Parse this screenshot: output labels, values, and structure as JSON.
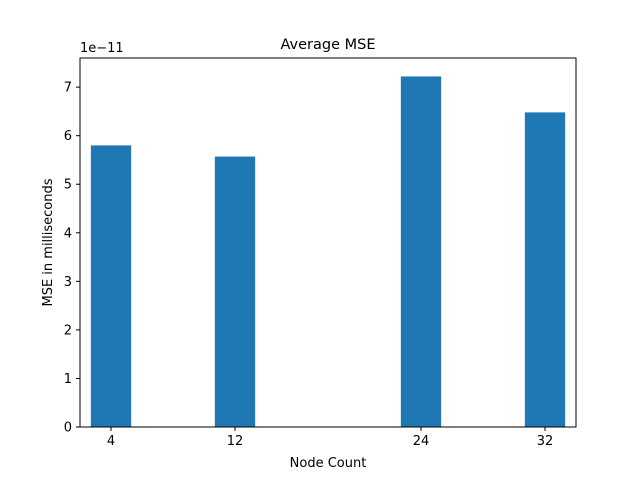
{
  "chart_data": {
    "type": "bar",
    "title": "Average MSE",
    "xlabel": "Node Count",
    "ylabel": "MSE in milliseconds",
    "offset_label": "1e−11",
    "x": [
      4,
      12,
      24,
      32
    ],
    "x_tick_labels": [
      "4",
      "12",
      "24",
      "32"
    ],
    "values": [
      5.8,
      5.57,
      7.22,
      6.48
    ],
    "value_scale": "1e-11",
    "xlim": [
      2,
      34
    ],
    "ylim": [
      0,
      7.6
    ],
    "y_ticks": [
      0,
      1,
      2,
      3,
      4,
      5,
      6,
      7
    ],
    "y_tick_labels": [
      "0",
      "1",
      "2",
      "3",
      "4",
      "5",
      "6",
      "7"
    ],
    "grid": false,
    "bar_color": "#1f77b4"
  }
}
